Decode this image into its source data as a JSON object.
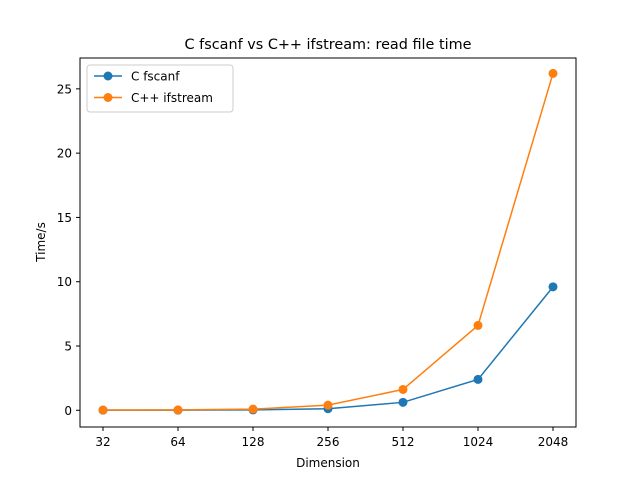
{
  "chart_data": {
    "type": "line",
    "title": "C fscanf vs C++ ifstream: read file time",
    "xlabel": "Dimension",
    "ylabel": "Time/s",
    "categories": [
      "32",
      "64",
      "128",
      "256",
      "512",
      "1024",
      "2048"
    ],
    "ylim": [
      -1.3,
      27.4
    ],
    "yticks": [
      0,
      5,
      10,
      15,
      20,
      25
    ],
    "grid": false,
    "legend_position": "top-left",
    "series": [
      {
        "name": "C fscanf",
        "color": "#1f77b4",
        "marker": "circle",
        "values": [
          0.01,
          0.01,
          0.03,
          0.12,
          0.62,
          2.4,
          9.6
        ]
      },
      {
        "name": "C++ ifstream",
        "color": "#ff7f0e",
        "marker": "circle",
        "values": [
          0.02,
          0.03,
          0.09,
          0.4,
          1.62,
          6.6,
          26.2
        ]
      }
    ]
  }
}
